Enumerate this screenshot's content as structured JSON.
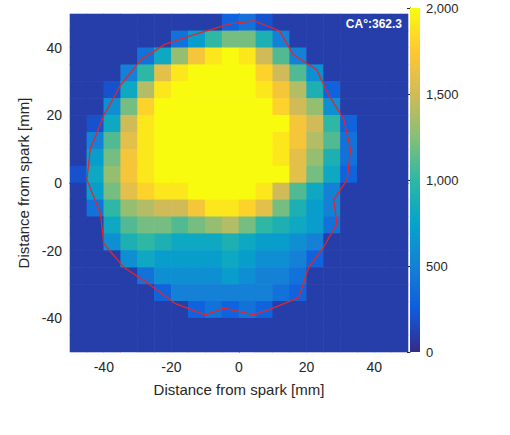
{
  "chart_data": {
    "type": "heatmap",
    "xlabel": "Distance from spark [mm]",
    "ylabel": "Distance from spark [mm]",
    "annotation": "CA°:362.3",
    "xlim": [
      -50,
      50
    ],
    "xticks": [
      -40,
      -20,
      0,
      20,
      40
    ],
    "ylim": [
      -50,
      50
    ],
    "yticks": [
      -40,
      -20,
      0,
      20,
      40
    ],
    "grid": false,
    "heatmap": {
      "x": [
        -47.5,
        -42.5,
        -37.5,
        -32.5,
        -27.5,
        -22.5,
        -17.5,
        -12.5,
        -7.5,
        -2.5,
        2.5,
        7.5,
        12.5,
        17.5,
        22.5,
        27.5,
        32.5,
        37.5,
        42.5,
        47.5
      ],
      "y": [
        47.5,
        42.5,
        37.5,
        32.5,
        27.5,
        22.5,
        17.5,
        12.5,
        7.5,
        2.5,
        -2.5,
        -7.5,
        -12.5,
        -17.5,
        -22.5,
        -27.5,
        -32.5,
        -37.5,
        -42.5,
        -47.5
      ],
      "values": [
        [
          100,
          100,
          100,
          100,
          100,
          100,
          100,
          100,
          100,
          300,
          400,
          200,
          100,
          100,
          100,
          100,
          100,
          100,
          100,
          100
        ],
        [
          100,
          100,
          100,
          100,
          100,
          100,
          400,
          700,
          1000,
          1200,
          1200,
          900,
          500,
          100,
          100,
          100,
          100,
          100,
          100,
          100
        ],
        [
          100,
          100,
          100,
          100,
          400,
          800,
          1300,
          1700,
          1900,
          2000,
          1900,
          1500,
          1100,
          500,
          100,
          100,
          100,
          100,
          100,
          100
        ],
        [
          100,
          100,
          100,
          500,
          1000,
          1600,
          1900,
          2000,
          2000,
          2000,
          2000,
          1800,
          1500,
          1100,
          600,
          100,
          100,
          100,
          100,
          100
        ],
        [
          100,
          100,
          200,
          800,
          1400,
          1900,
          2000,
          2000,
          2000,
          2000,
          2000,
          1900,
          1700,
          1400,
          900,
          300,
          100,
          100,
          100,
          100
        ],
        [
          100,
          100,
          600,
          1200,
          1800,
          2000,
          2000,
          2000,
          2000,
          2000,
          2000,
          2000,
          1800,
          1500,
          1300,
          600,
          100,
          100,
          100,
          100
        ],
        [
          100,
          200,
          800,
          1500,
          1900,
          2000,
          2000,
          2000,
          2000,
          2000,
          2000,
          2000,
          2000,
          1700,
          1500,
          1000,
          300,
          100,
          100,
          100
        ],
        [
          100,
          500,
          1100,
          1600,
          1900,
          2000,
          2000,
          2000,
          2000,
          2000,
          2000,
          2000,
          1900,
          1700,
          1400,
          1100,
          400,
          100,
          100,
          100
        ],
        [
          100,
          700,
          1200,
          1700,
          1900,
          2000,
          2000,
          2000,
          2000,
          2000,
          2000,
          2000,
          1900,
          1600,
          1300,
          900,
          400,
          100,
          100,
          100
        ],
        [
          200,
          800,
          1300,
          1700,
          1900,
          2000,
          2000,
          2000,
          2000,
          2000,
          2000,
          2000,
          2000,
          1600,
          1200,
          800,
          300,
          100,
          100,
          100
        ],
        [
          100,
          700,
          1200,
          1600,
          1800,
          1900,
          1900,
          2000,
          2000,
          2000,
          2000,
          1900,
          1500,
          1100,
          800,
          500,
          100,
          100,
          100,
          100
        ],
        [
          100,
          400,
          1000,
          1300,
          1400,
          1500,
          1500,
          1700,
          1900,
          1900,
          1800,
          1600,
          1200,
          900,
          700,
          500,
          100,
          100,
          100,
          100
        ],
        [
          100,
          100,
          800,
          1100,
          1200,
          1200,
          1100,
          1200,
          1300,
          1400,
          1200,
          1000,
          900,
          800,
          700,
          400,
          100,
          100,
          100,
          100
        ],
        [
          100,
          100,
          600,
          900,
          1000,
          900,
          800,
          800,
          800,
          900,
          800,
          700,
          700,
          600,
          500,
          100,
          100,
          100,
          100,
          100
        ],
        [
          100,
          100,
          100,
          600,
          800,
          700,
          700,
          700,
          700,
          800,
          700,
          600,
          600,
          500,
          300,
          100,
          100,
          100,
          100,
          100
        ],
        [
          100,
          100,
          100,
          100,
          400,
          600,
          600,
          600,
          600,
          700,
          600,
          500,
          500,
          400,
          100,
          100,
          100,
          100,
          100,
          100
        ],
        [
          100,
          100,
          100,
          100,
          100,
          300,
          500,
          500,
          500,
          500,
          500,
          500,
          400,
          300,
          100,
          100,
          100,
          100,
          100,
          100
        ],
        [
          100,
          100,
          100,
          100,
          100,
          100,
          100,
          300,
          400,
          300,
          400,
          300,
          100,
          100,
          100,
          100,
          100,
          100,
          100,
          100
        ],
        [
          100,
          100,
          100,
          100,
          100,
          100,
          100,
          100,
          100,
          100,
          100,
          100,
          100,
          100,
          100,
          100,
          100,
          100,
          100,
          100
        ],
        [
          100,
          100,
          100,
          100,
          100,
          100,
          100,
          100,
          100,
          100,
          100,
          100,
          100,
          100,
          100,
          100,
          100,
          100,
          100,
          100
        ]
      ]
    },
    "boundary": {
      "color": "#e3262d",
      "x": [
        -3,
        4.4,
        12,
        16,
        23,
        26.5,
        31,
        33,
        32,
        28,
        29,
        25,
        20.6,
        17.6,
        10,
        4.4,
        -4.4,
        -10,
        -19,
        -26.5,
        -34,
        -40,
        -41,
        -45,
        -44,
        -40,
        -35,
        -29,
        -22,
        -13,
        -3
      ],
      "y": [
        47,
        48,
        45,
        38,
        33.5,
        26,
        19,
        10,
        1,
        -5,
        -12,
        -19,
        -25,
        -34,
        -37,
        -39,
        -37,
        -39,
        -35.6,
        -30,
        -25,
        -18,
        -9,
        1,
        10,
        20,
        29,
        36.5,
        41,
        44,
        47
      ]
    },
    "colorbar": {
      "range": [
        0,
        2000
      ],
      "ticks": [
        0,
        500,
        1000,
        1500,
        2000
      ]
    }
  }
}
